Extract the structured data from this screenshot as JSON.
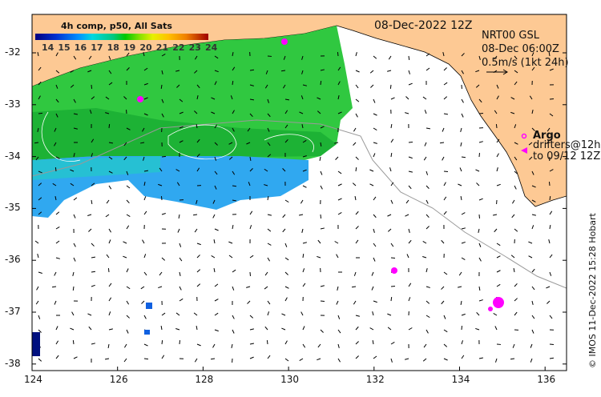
{
  "map": {
    "date_label": "08-Dec-2022 12Z",
    "legend": {
      "title": "4h comp, p50, All Sats",
      "ticks": [
        "14",
        "15",
        "16",
        "17",
        "18",
        "19",
        "20",
        "21",
        "22",
        "23",
        "24"
      ],
      "colors": [
        "#00007f",
        "#0030d0",
        "#0090ff",
        "#00d8e0",
        "#00c880",
        "#00c800",
        "#80e000",
        "#e8f000",
        "#ffc000",
        "#f08000",
        "#c03000",
        "#a00000"
      ]
    },
    "current_info": {
      "model": "NRT00 GSL",
      "time": "08-Dec 06:00Z",
      "scale": "0.5m/s (1kt 24h)"
    },
    "argo_label": "Argo",
    "drifters_label": "drifters@12h",
    "drifters_to": "to 09/12 12Z",
    "credit": "© IMOS 11-Dec-2022 15:28 Hobart",
    "x_ticks": [
      "124",
      "126",
      "128",
      "130",
      "132",
      "134",
      "136"
    ],
    "y_ticks": [
      "-32",
      "-33",
      "-34",
      "-35",
      "-36",
      "-37",
      "-38"
    ],
    "colors": {
      "land": "#fdc994",
      "sst_green": "#2cc83a",
      "sst_blue": "#2aa0f0",
      "drifter": "#ff00ff"
    }
  }
}
